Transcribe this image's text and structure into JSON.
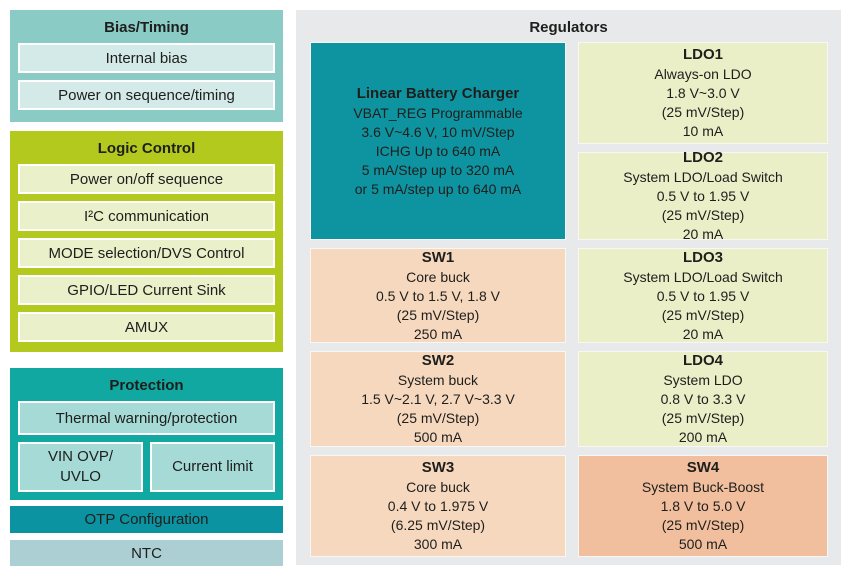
{
  "colors": {
    "text": "#1e1e1c",
    "bias_bg": "#8bcbc6",
    "bias_item_bg": "#d3eae8",
    "lime_bg": "#b3c91d",
    "lime_item_bg": "#eaf0ca",
    "protection_bg": "#10a8a1",
    "protection_item_bg": "#a5dad6",
    "otp_bg": "#0b93a1",
    "ntc_bg": "#accfd4",
    "panel_bg": "#e8e9eb",
    "charger_bg": "#0e94a1",
    "ldo_bg": "#eaefc8",
    "sw_bg": "#f6d8be",
    "sw4_bg": "#f1bf9d"
  },
  "sidebar": {
    "bias": {
      "title": "Bias/Timing",
      "items": [
        "Internal bias",
        "Power on sequence/timing"
      ]
    },
    "logic": {
      "title": "Logic Control",
      "items": [
        "Power on/off sequence",
        "I²C communication",
        "MODE selection/DVS Control",
        "GPIO/LED Current Sink",
        "AMUX"
      ]
    },
    "protection": {
      "title": "Protection",
      "full_item": "Thermal warning/protection",
      "split": [
        [
          "VIN OVP/",
          "UVLO"
        ],
        [
          "Current limit"
        ]
      ]
    },
    "otp_label": "OTP Configuration",
    "ntc_label": "NTC"
  },
  "regulators": {
    "title": "Regulators",
    "charger": {
      "name": "Linear Battery Charger",
      "lines": [
        "VBAT_REG Programmable",
        "3.6 V~4.6 V, 10 mV/Step",
        "ICHG Up to 640 mA",
        "5 mA/Step up to 320 mA",
        "or 5 mA/step up to 640 mA"
      ]
    },
    "blocks": [
      {
        "name": "LDO1",
        "lines": [
          "Always-on LDO",
          "1.8 V~3.0 V",
          "(25 mV/Step)",
          "10 mA"
        ]
      },
      {
        "name": "LDO2",
        "lines": [
          "System LDO/Load Switch",
          "0.5 V to 1.95 V",
          "(25 mV/Step)",
          "20 mA"
        ]
      },
      {
        "name": "SW1",
        "lines": [
          "Core buck",
          "0.5 V to 1.5 V, 1.8 V",
          "(25 mV/Step)",
          "250 mA"
        ]
      },
      {
        "name": "LDO3",
        "lines": [
          "System LDO/Load Switch",
          "0.5 V to 1.95 V",
          "(25 mV/Step)",
          "20 mA"
        ]
      },
      {
        "name": "SW2",
        "lines": [
          "System buck",
          "1.5 V~2.1 V, 2.7 V~3.3 V",
          "(25 mV/Step)",
          "500 mA"
        ]
      },
      {
        "name": "LDO4",
        "lines": [
          "System LDO",
          "0.8 V to 3.3 V",
          "(25 mV/Step)",
          "200 mA"
        ]
      },
      {
        "name": "SW3",
        "lines": [
          "Core buck",
          "0.4 V to 1.975 V",
          "(6.25 mV/Step)",
          "300 mA"
        ]
      },
      {
        "name": "SW4",
        "lines": [
          "System Buck-Boost",
          "1.8 V to 5.0 V",
          "(25 mV/Step)",
          "500 mA"
        ]
      }
    ]
  }
}
